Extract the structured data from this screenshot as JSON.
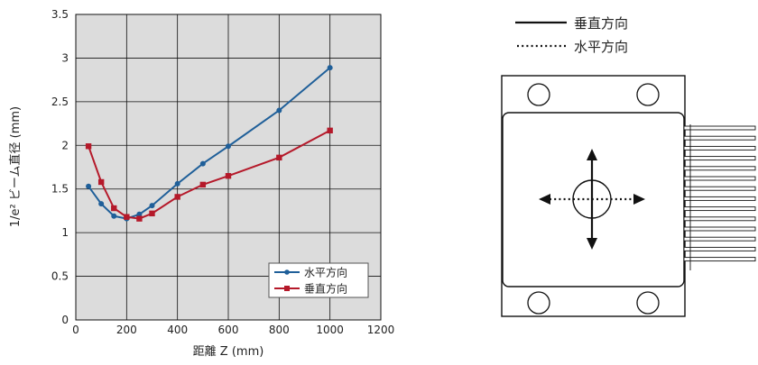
{
  "chart_data": {
    "type": "line",
    "xlabel": "距離 Z (mm)",
    "ylabel": "1/e² ビーム直径 (mm)",
    "xlim": [
      0,
      1200
    ],
    "ylim": [
      0,
      3.5
    ],
    "x_ticks": [
      "0",
      "200",
      "400",
      "600",
      "800",
      "1000",
      "1200"
    ],
    "y_ticks": [
      "0",
      "0.5",
      "1",
      "1.5",
      "2",
      "2.5",
      "3",
      "3.5"
    ],
    "grid": true,
    "legend_position": "bottom-right",
    "series": [
      {
        "name": "水平方向",
        "color": "#1f5f99",
        "marker": "circle",
        "points": [
          [
            50,
            1.53
          ],
          [
            100,
            1.33
          ],
          [
            150,
            1.19
          ],
          [
            200,
            1.16
          ],
          [
            250,
            1.21
          ],
          [
            300,
            1.31
          ],
          [
            400,
            1.56
          ],
          [
            500,
            1.79
          ],
          [
            600,
            1.99
          ],
          [
            800,
            2.4
          ],
          [
            1000,
            2.89
          ]
        ]
      },
      {
        "name": "垂直方向",
        "color": "#b5192a",
        "marker": "square",
        "points": [
          [
            50,
            1.99
          ],
          [
            100,
            1.58
          ],
          [
            150,
            1.28
          ],
          [
            200,
            1.18
          ],
          [
            250,
            1.16
          ],
          [
            300,
            1.22
          ],
          [
            400,
            1.41
          ],
          [
            500,
            1.55
          ],
          [
            600,
            1.65
          ],
          [
            800,
            1.86
          ],
          [
            1000,
            2.17
          ]
        ]
      }
    ]
  },
  "diagram": {
    "legend_solid_label": "垂直方向",
    "legend_dotted_label": "水平方向"
  }
}
